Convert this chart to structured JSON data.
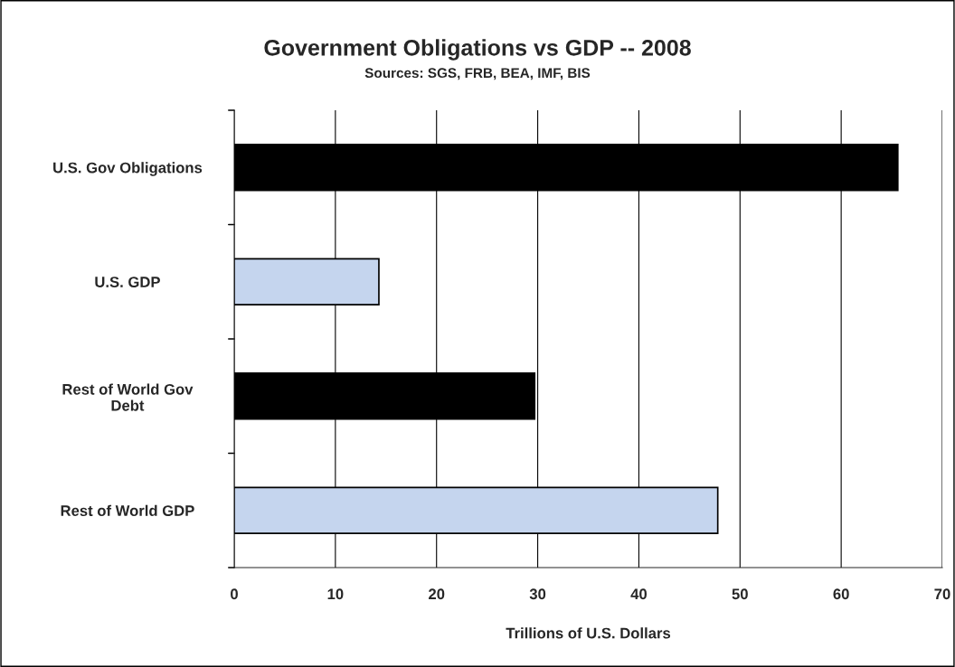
{
  "chart_data": {
    "type": "bar",
    "orientation": "horizontal",
    "title": "Government Obligations vs GDP -- 2008",
    "subtitle": "Sources: SGS, FRB, BEA, IMF, BIS",
    "xlabel": "Trillions of U.S. Dollars",
    "categories": [
      "U.S. Gov Obligations",
      "U.S. GDP",
      "Rest of World Gov\nDebt",
      "Rest of World GDP"
    ],
    "values": [
      65.6,
      14.3,
      29.7,
      47.8
    ],
    "colors": [
      "#000000",
      "#c5d5ee",
      "#000000",
      "#c5d5ee"
    ],
    "xlim": [
      0,
      70
    ],
    "xticks": [
      0,
      10,
      20,
      30,
      40,
      50,
      60,
      70
    ],
    "grid": "x",
    "legend": false
  }
}
